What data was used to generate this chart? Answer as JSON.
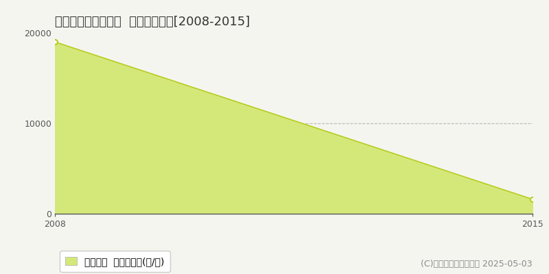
{
  "title": "度会郡南伊勢町船越  林地価格推移[2008-2015]",
  "x_values": [
    2008,
    2015
  ],
  "y_values": [
    19000,
    1600
  ],
  "x_min": 2008,
  "x_max": 2015,
  "y_min": 0,
  "y_max": 20000,
  "y_ticks": [
    0,
    10000,
    20000
  ],
  "x_ticks": [
    2008,
    2015
  ],
  "line_color": "#b8cc20",
  "fill_color": "#d4e87a",
  "fill_alpha": 1.0,
  "marker_color": "#b8cc20",
  "grid_color": "#aaaaaa",
  "grid_style": "--",
  "grid_alpha": 0.8,
  "background_color": "#f5f5f0",
  "plot_bg_color": "#f5f5f0",
  "legend_label": "林地価格  平均坪単価(円/坪)",
  "copyright_text": "(C)土地価格ドットコム 2025-05-03",
  "title_fontsize": 13,
  "tick_fontsize": 9,
  "legend_fontsize": 10,
  "copyright_fontsize": 9
}
